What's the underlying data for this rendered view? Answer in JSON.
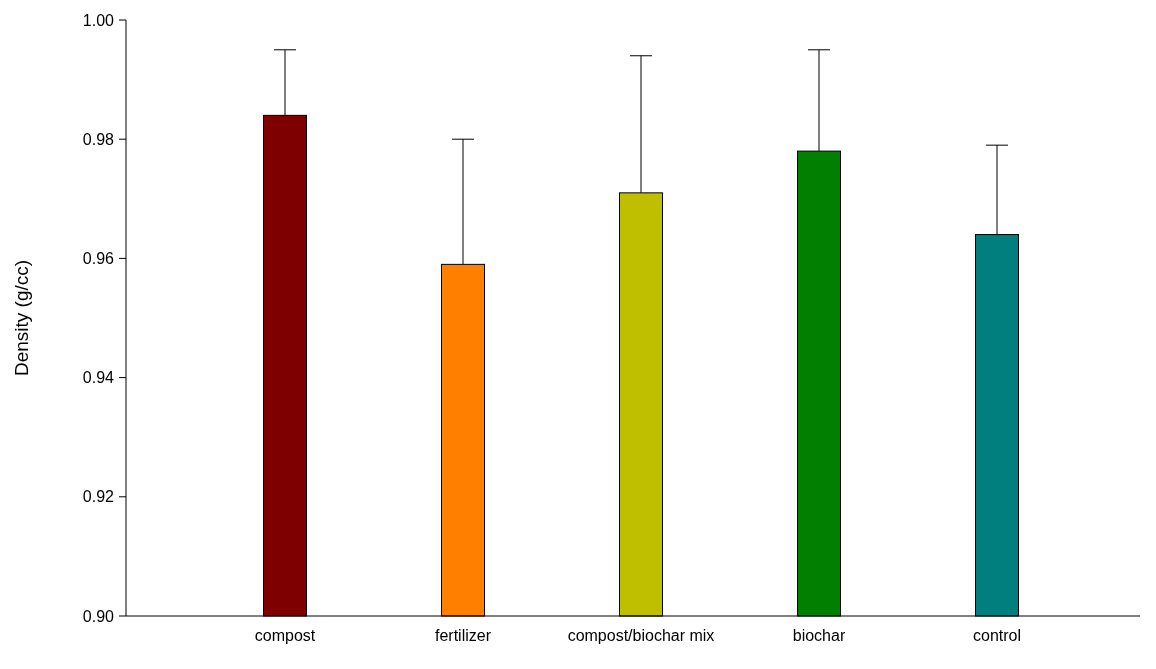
{
  "chart_data": {
    "type": "bar",
    "ylabel": "Density (g/cc)",
    "categories": [
      "compost",
      "fertilizer",
      "compost/biochar mix",
      "biochar",
      "control"
    ],
    "values": [
      0.984,
      0.959,
      0.971,
      0.978,
      0.964
    ],
    "errors": [
      0.011,
      0.021,
      0.023,
      0.017,
      0.015
    ],
    "colors": [
      "#7f0000",
      "#ff7f00",
      "#bfbf00",
      "#007f00",
      "#007f7f"
    ],
    "ylim": [
      0.9,
      1.0
    ],
    "yticks": [
      {
        "value": 0.9,
        "label": "0.90"
      },
      {
        "value": 0.92,
        "label": "0.92"
      },
      {
        "value": 0.94,
        "label": "0.94"
      },
      {
        "value": 0.96,
        "label": "0.96"
      },
      {
        "value": 0.98,
        "label": "0.98"
      },
      {
        "value": 1.0,
        "label": "1.00"
      }
    ],
    "grid": false
  }
}
